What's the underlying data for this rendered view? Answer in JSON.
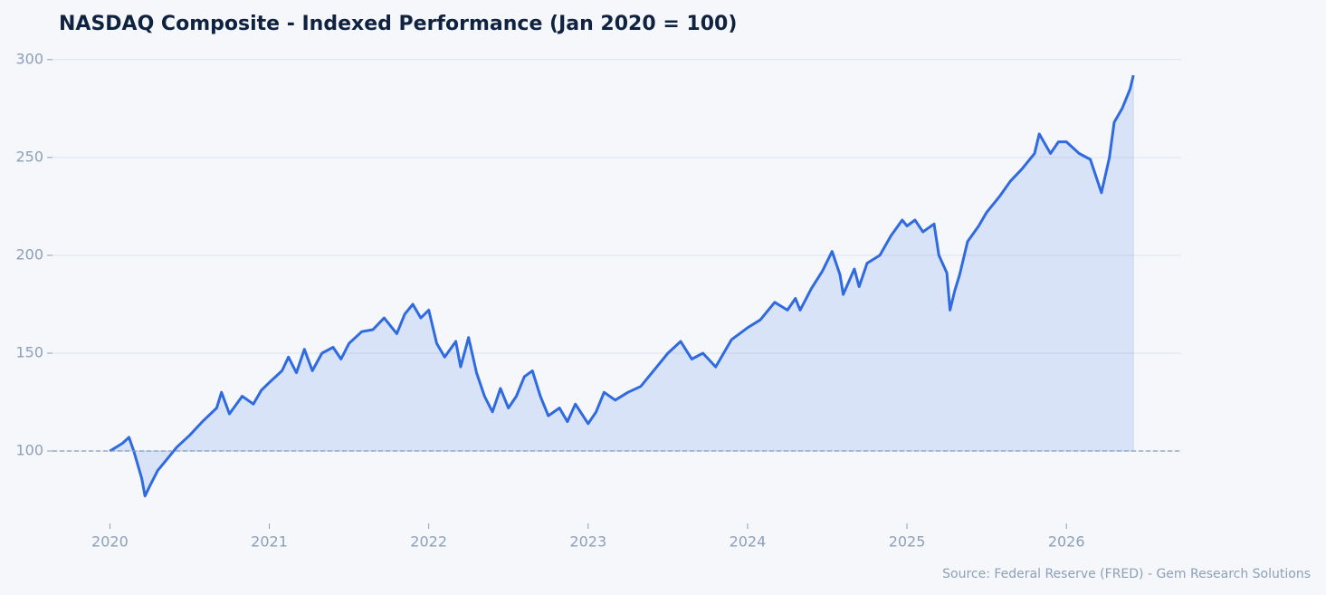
{
  "chart_data": {
    "type": "line",
    "title": "NASDAQ Composite - Indexed Performance (Jan 2020 = 100)",
    "source": "Source: Federal Reserve (FRED) - Gem Research Solutions",
    "baseline": 100,
    "x": [
      2020.0,
      2020.08,
      2020.12,
      2020.15,
      2020.2,
      2020.22,
      2020.25,
      2020.3,
      2020.35,
      2020.42,
      2020.5,
      2020.58,
      2020.67,
      2020.7,
      2020.75,
      2020.83,
      2020.9,
      2020.95,
      2021.0,
      2021.08,
      2021.12,
      2021.17,
      2021.22,
      2021.27,
      2021.33,
      2021.4,
      2021.45,
      2021.5,
      2021.58,
      2021.65,
      2021.72,
      2021.8,
      2021.85,
      2021.9,
      2021.95,
      2022.0,
      2022.05,
      2022.1,
      2022.17,
      2022.2,
      2022.25,
      2022.3,
      2022.35,
      2022.4,
      2022.45,
      2022.5,
      2022.55,
      2022.6,
      2022.65,
      2022.7,
      2022.75,
      2022.82,
      2022.87,
      2022.92,
      2023.0,
      2023.05,
      2023.1,
      2023.17,
      2023.25,
      2023.33,
      2023.42,
      2023.5,
      2023.58,
      2023.65,
      2023.72,
      2023.8,
      2023.85,
      2023.9,
      2024.0,
      2024.08,
      2024.17,
      2024.25,
      2024.3,
      2024.33,
      2024.4,
      2024.47,
      2024.53,
      2024.58,
      2024.6,
      2024.67,
      2024.7,
      2024.75,
      2024.83,
      2024.9,
      2024.97,
      2025.0,
      2025.05,
      2025.1,
      2025.17,
      2025.2,
      2025.25,
      2025.27,
      2025.3,
      2025.33,
      2025.38,
      2025.45,
      2025.5,
      2025.58,
      2025.65,
      2025.72,
      2025.8,
      2025.83,
      2025.9,
      2025.95,
      2026.0,
      2026.08,
      2026.15,
      2026.22,
      2026.27,
      2026.3,
      2026.35,
      2026.4,
      2026.42
    ],
    "series": [
      {
        "name": "NASDAQ Composite",
        "color": "#2f6ae0",
        "values": [
          100,
          104,
          107,
          100,
          86,
          77,
          82,
          90,
          95,
          102,
          108,
          115,
          122,
          130,
          119,
          128,
          124,
          131,
          135,
          141,
          148,
          140,
          152,
          141,
          150,
          153,
          147,
          155,
          161,
          162,
          168,
          160,
          170,
          175,
          168,
          172,
          155,
          148,
          156,
          143,
          158,
          140,
          128,
          120,
          132,
          122,
          128,
          138,
          141,
          128,
          118,
          122,
          115,
          124,
          114,
          120,
          130,
          126,
          130,
          133,
          142,
          150,
          156,
          147,
          150,
          143,
          150,
          157,
          163,
          167,
          176,
          172,
          178,
          172,
          183,
          192,
          202,
          190,
          180,
          193,
          184,
          196,
          200,
          210,
          218,
          215,
          218,
          212,
          216,
          200,
          191,
          172,
          182,
          190,
          207,
          215,
          222,
          230,
          238,
          244,
          252,
          262,
          252,
          258,
          258,
          252,
          249,
          232,
          250,
          268,
          275,
          285,
          292
        ]
      }
    ],
    "xlim": [
      2019.64,
      2026.72
    ],
    "xticks": [
      2020,
      2021,
      2022,
      2023,
      2024,
      2025,
      2026
    ],
    "ylim": [
      63,
      305
    ],
    "yticks": [
      100,
      150,
      200,
      250,
      300
    ],
    "grid": true
  }
}
